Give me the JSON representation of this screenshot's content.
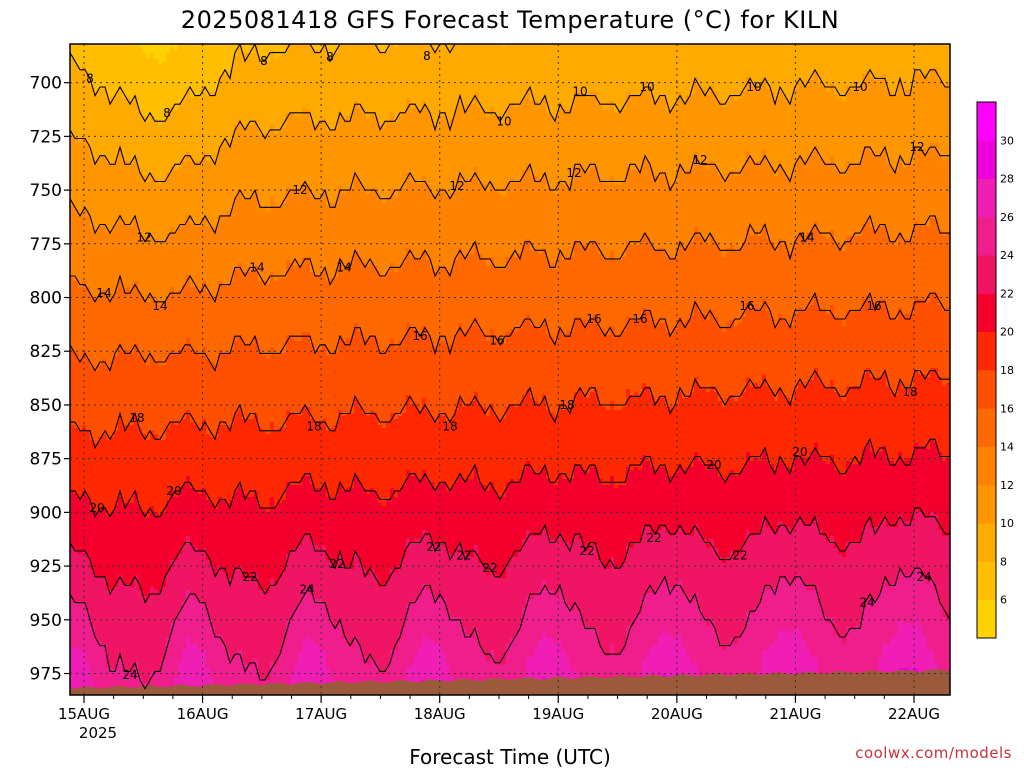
{
  "chart_data": {
    "type": "heatmap",
    "title": "2025081418 GFS Forecast Temperature (°C) for KILN",
    "xlabel": "Forecast Time (UTC)",
    "ylabel": "",
    "credit": "coolwx.com/models",
    "y_axis": {
      "scale": "pressure-hPa",
      "inverted": true,
      "ylim": [
        985,
        682
      ],
      "ticks": [
        "700",
        "725",
        "750",
        "775",
        "800",
        "825",
        "850",
        "875",
        "900",
        "925",
        "950",
        "975"
      ]
    },
    "x_axis": {
      "tick_labels": [
        "15AUG",
        "16AUG",
        "17AUG",
        "18AUG",
        "19AUG",
        "20AUG",
        "21AUG",
        "22AUG"
      ],
      "year_label": "2025",
      "start": "2025-08-14 18Z",
      "end": "2025-08-22 06Z"
    },
    "grid": true,
    "colorbar": {
      "placement": "right",
      "ticks": [
        "6",
        "8",
        "10",
        "12",
        "14",
        "16",
        "18",
        "20",
        "22",
        "24",
        "26",
        "28",
        "30"
      ],
      "colors": [
        "#ffd200",
        "#ffbe00",
        "#ffaa00",
        "#ff9600",
        "#ff8200",
        "#ff6900",
        "#ff5000",
        "#ff2800",
        "#f5002d",
        "#f01464",
        "#f01e8c",
        "#f01eb4",
        "#f000dc",
        "#ff00ff"
      ]
    },
    "contour_levels": [
      8,
      10,
      12,
      14,
      16,
      18,
      20,
      22,
      24
    ],
    "contour_labels": [
      "8",
      "8",
      "8",
      "8",
      "8",
      "10",
      "10",
      "10",
      "10",
      "10",
      "12",
      "12",
      "12",
      "12",
      "12",
      "12",
      "14",
      "14",
      "14",
      "14",
      "14",
      "16",
      "16",
      "16",
      "16",
      "16",
      "16",
      "18",
      "18",
      "18",
      "18",
      "18",
      "20",
      "20",
      "20",
      "20",
      "22",
      "22",
      "22",
      "22",
      "22",
      "22",
      "22",
      "24",
      "24",
      "24",
      "24",
      "22"
    ],
    "terrain_color": "#9c5a3c"
  }
}
